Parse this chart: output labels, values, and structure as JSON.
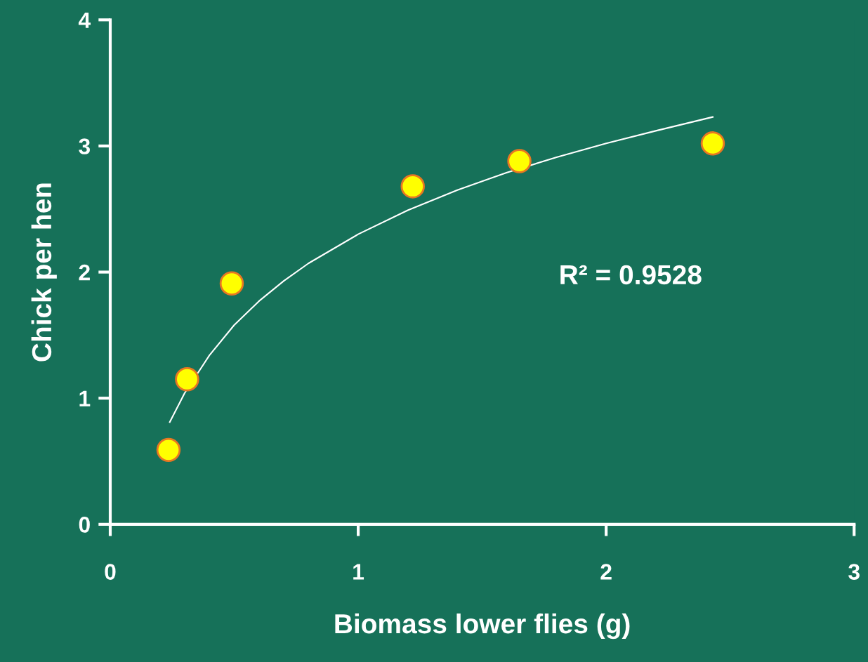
{
  "chart_data": {
    "type": "scatter",
    "xlabel": "Biomass lower flies (g)",
    "ylabel": "Chick per hen",
    "xlim": [
      0,
      3
    ],
    "xticks": [
      0,
      1,
      2,
      3
    ],
    "ylim": [
      0,
      4
    ],
    "yticks": [
      0,
      1,
      2,
      3,
      4
    ],
    "grid": false,
    "legend": false,
    "series": [
      {
        "marker": "circle",
        "color": "#ffff00",
        "x": [
          0.235,
          0.31,
          0.49,
          1.22,
          1.65,
          2.43
        ],
        "values": [
          0.59,
          1.15,
          1.91,
          2.68,
          2.88,
          3.02
        ]
      },
      {
        "type": "line",
        "marker": "none",
        "color": "#ffffff",
        "x": [
          0.24,
          0.3,
          0.4,
          0.5,
          0.6,
          0.7,
          0.8,
          1.0,
          1.2,
          1.4,
          1.6,
          1.8,
          2.0,
          2.2,
          2.43
        ],
        "values": [
          0.81,
          1.04,
          1.34,
          1.58,
          1.77,
          1.93,
          2.07,
          2.3,
          2.49,
          2.65,
          2.79,
          2.91,
          3.02,
          3.12,
          3.23
        ]
      }
    ],
    "annotations": [
      "R² = 0.9528"
    ]
  }
}
